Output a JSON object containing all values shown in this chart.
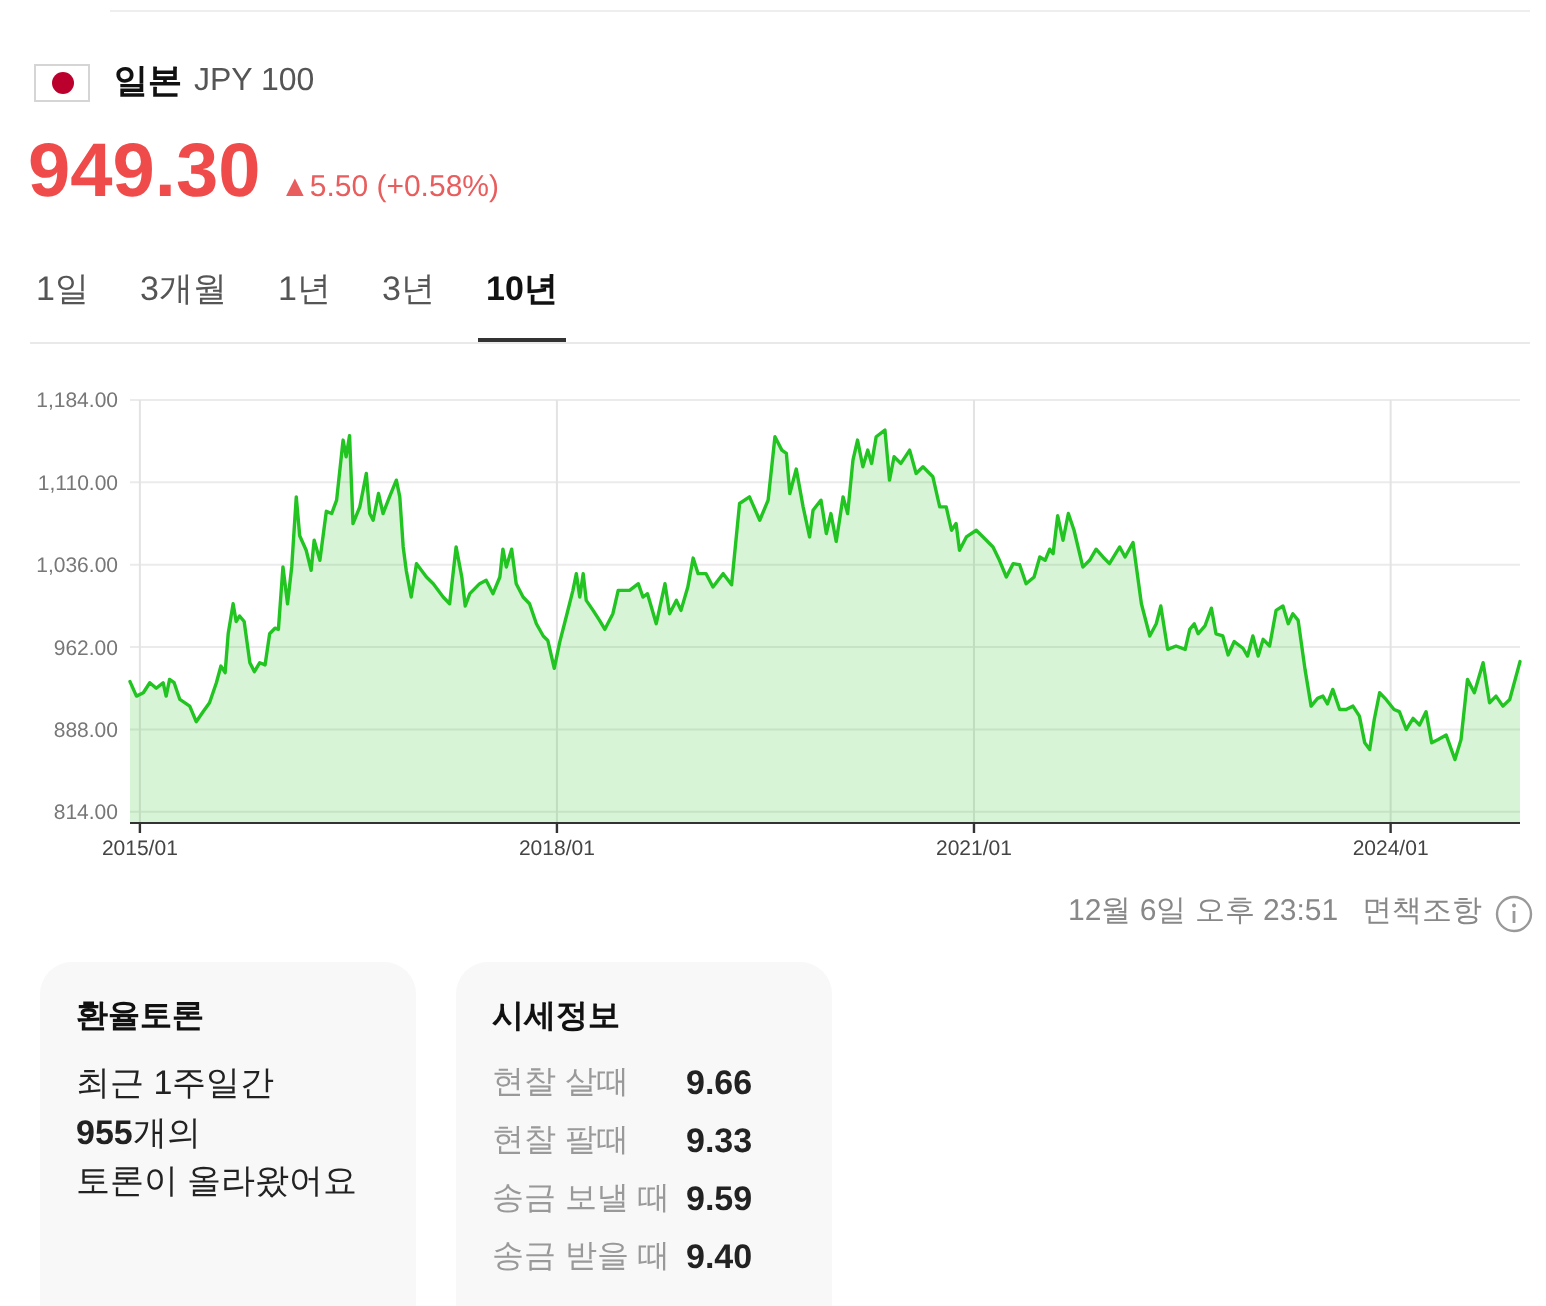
{
  "chart_data": [
    {
      "type": "area",
      "title": "일본",
      "subtitle": "JPY 100",
      "annotations": [
        "949.30",
        "▲5.50 (+0.58%)",
        "1일",
        "3개월",
        "1년",
        "3년",
        "10년",
        "12월 6일 오후 23:51",
        "면책조항"
      ],
      "x": [
        "2014-12-06",
        "2014-12-23",
        "2015-01-10",
        "2015-01-27",
        "2015-02-13",
        "2015-03-03",
        "2015-03-11",
        "2015-03-20",
        "2015-04-01",
        "2015-04-16",
        "2015-05-12",
        "2015-05-29",
        "2015-06-16",
        "2015-07-03",
        "2015-07-21",
        "2015-08-02",
        "2015-08-13",
        "2015-08-21",
        "2015-09-03",
        "2015-09-11",
        "2015-09-20",
        "2015-10-02",
        "2015-10-17",
        "2015-10-29",
        "2015-11-12",
        "2015-11-26",
        "2015-12-08",
        "2015-12-22",
        "2015-12-31",
        "2016-01-12",
        "2016-01-24",
        "2016-02-04",
        "2016-02-16",
        "2016-02-25",
        "2016-03-13",
        "2016-03-26",
        "2016-04-03",
        "2016-04-18",
        "2016-05-05",
        "2016-05-19",
        "2016-06-01",
        "2016-06-18",
        "2016-06-26",
        "2016-07-05",
        "2016-07-14",
        "2016-08-01",
        "2016-08-18",
        "2016-08-27",
        "2016-09-05",
        "2016-09-19",
        "2016-10-01",
        "2016-10-18",
        "2016-11-05",
        "2016-11-14",
        "2016-11-23",
        "2016-12-01",
        "2016-12-14",
        "2016-12-28",
        "2017-01-23",
        "2017-02-10",
        "2017-03-08",
        "2017-03-25",
        "2017-04-11",
        "2017-04-26",
        "2017-05-05",
        "2017-05-17",
        "2017-06-12",
        "2017-06-29",
        "2017-07-17",
        "2017-08-04",
        "2017-08-12",
        "2017-08-21",
        "2017-09-04",
        "2017-09-16",
        "2017-10-04",
        "2017-10-21",
        "2017-11-08",
        "2017-11-26",
        "2017-12-08",
        "2017-12-25",
        "2018-01-08",
        "2018-01-26",
        "2018-02-12",
        "2018-02-21",
        "2018-03-02",
        "2018-03-11",
        "2018-03-19",
        "2018-04-06",
        "2018-04-23",
        "2018-05-07",
        "2018-05-28",
        "2018-06-11",
        "2018-07-11",
        "2018-08-03",
        "2018-08-15",
        "2018-08-27",
        "2018-09-19",
        "2018-10-12",
        "2018-10-24",
        "2018-11-11",
        "2018-11-23",
        "2018-12-11",
        "2018-12-25",
        "2019-01-07",
        "2019-01-28",
        "2019-02-15",
        "2019-03-14",
        "2019-04-05",
        "2019-04-26",
        "2019-05-22",
        "2019-06-18",
        "2019-07-10",
        "2019-07-28",
        "2019-08-15",
        "2019-08-27",
        "2019-09-05",
        "2019-09-22",
        "2019-10-10",
        "2019-10-27",
        "2019-11-05",
        "2019-11-26",
        "2019-12-10",
        "2019-12-22",
        "2020-01-05",
        "2020-01-23",
        "2020-02-04",
        "2020-02-18",
        "2020-03-01",
        "2020-03-15",
        "2020-03-28",
        "2020-04-07",
        "2020-04-19",
        "2020-05-12",
        "2020-05-24",
        "2020-06-05",
        "2020-06-23",
        "2020-07-16",
        "2020-08-02",
        "2020-08-20",
        "2020-09-15",
        "2020-10-03",
        "2020-10-20",
        "2020-11-03",
        "2020-11-15",
        "2020-11-24",
        "2020-12-12",
        "2021-01-07",
        "2021-01-25",
        "2021-02-20",
        "2021-03-09",
        "2021-03-27",
        "2021-04-14",
        "2021-05-01",
        "2021-05-18",
        "2021-06-08",
        "2021-06-23",
        "2021-07-07",
        "2021-07-19",
        "2021-07-28",
        "2021-08-09",
        "2021-08-23",
        "2021-09-06",
        "2021-09-21",
        "2021-10-14",
        "2021-11-01",
        "2021-11-18",
        "2021-12-06",
        "2021-12-23",
        "2022-01-19",
        "2022-02-02",
        "2022-02-23",
        "2022-03-17",
        "2022-04-08",
        "2022-04-25",
        "2022-05-07",
        "2022-05-25",
        "2022-06-16",
        "2022-07-10",
        "2022-07-22",
        "2022-08-03",
        "2022-08-13",
        "2022-08-31",
        "2022-09-17",
        "2022-09-29",
        "2022-10-17",
        "2022-10-31",
        "2022-11-16",
        "2022-12-09",
        "2022-12-21",
        "2023-01-04",
        "2023-01-18",
        "2023-01-31",
        "2023-02-17",
        "2023-03-06",
        "2023-03-24",
        "2023-04-07",
        "2023-04-19",
        "2023-05-03",
        "2023-05-21",
        "2023-06-06",
        "2023-06-23",
        "2023-07-07",
        "2023-07-19",
        "2023-08-02",
        "2023-08-20",
        "2023-09-06",
        "2023-09-24",
        "2023-10-11",
        "2023-10-25",
        "2023-11-07",
        "2023-11-19",
        "2023-12-03",
        "2023-12-20",
        "2024-01-10",
        "2024-01-24",
        "2024-02-11",
        "2024-02-29",
        "2024-03-17",
        "2024-04-03",
        "2024-04-18",
        "2024-05-05",
        "2024-05-26",
        "2024-06-18",
        "2024-07-04",
        "2024-07-21",
        "2024-08-08",
        "2024-08-31",
        "2024-09-17",
        "2024-10-04",
        "2024-10-22",
        "2024-11-09",
        "2024-12-06"
      ],
      "series": [
        {
          "color": "#22c422",
          "values": [
            931,
            918,
            921,
            930,
            925,
            930,
            918,
            933,
            930,
            915,
            909,
            895,
            904,
            912,
            930,
            945,
            939,
            974,
            1001,
            985,
            990,
            985,
            948,
            940,
            948,
            946,
            974,
            979,
            978,
            1034,
            1001,
            1034,
            1097,
            1062,
            1049,
            1031,
            1058,
            1040,
            1084,
            1082,
            1094,
            1148,
            1133,
            1152,
            1073,
            1088,
            1118,
            1082,
            1076,
            1100,
            1082,
            1097,
            1112,
            1097,
            1052,
            1031,
            1007,
            1037,
            1025,
            1019,
            1007,
            1001,
            1052,
            1025,
            999,
            1010,
            1019,
            1022,
            1010,
            1025,
            1050,
            1034,
            1050,
            1019,
            1007,
            1001,
            983,
            972,
            968,
            943,
            966,
            990,
            1013,
            1028,
            1007,
            1028,
            1004,
            995,
            986,
            978,
            992,
            1013,
            1013,
            1019,
            1007,
            1010,
            983,
            1019,
            992,
            1004,
            995,
            1016,
            1042,
            1028,
            1028,
            1016,
            1028,
            1018,
            1091,
            1097,
            1076,
            1094,
            1151,
            1139,
            1136,
            1100,
            1122,
            1088,
            1061,
            1085,
            1094,
            1064,
            1082,
            1057,
            1097,
            1082,
            1130,
            1148,
            1124,
            1139,
            1127,
            1151,
            1157,
            1112,
            1133,
            1127,
            1139,
            1118,
            1124,
            1115,
            1088,
            1088,
            1067,
            1073,
            1049,
            1061,
            1067,
            1061,
            1052,
            1040,
            1025,
            1037,
            1036,
            1019,
            1025,
            1043,
            1040,
            1050,
            1046,
            1080,
            1058,
            1082,
            1067,
            1034,
            1040,
            1050,
            1043,
            1037,
            1052,
            1043,
            1056,
            1001,
            972,
            983,
            999,
            960,
            963,
            960,
            978,
            983,
            974,
            981,
            997,
            974,
            972,
            955,
            967,
            961,
            954,
            972,
            954,
            969,
            963,
            995,
            999,
            983,
            992,
            986,
            942,
            909,
            916,
            918,
            911,
            924,
            906,
            906,
            909,
            900,
            876,
            870,
            897,
            921,
            915,
            906,
            904,
            888,
            898,
            892,
            904,
            876,
            879,
            883,
            861,
            879,
            933,
            921,
            948,
            912,
            918,
            909,
            915,
            949
          ]
        }
      ],
      "xlim": [
        "2014-12-06",
        "2024-12-06"
      ],
      "xticks": [
        {
          "value": "2015-01",
          "label": "2015/01"
        },
        {
          "value": "2018-01",
          "label": "2018/01"
        },
        {
          "value": "2021-01",
          "label": "2021/01"
        },
        {
          "value": "2024-01",
          "label": "2024/01"
        }
      ],
      "ylim": [
        804,
        1184
      ],
      "yticks": [
        {
          "value": 814,
          "label": "814.00"
        },
        {
          "value": 888,
          "label": "888.00"
        },
        {
          "value": 962,
          "label": "962.00"
        },
        {
          "value": 1036,
          "label": "1,036.00"
        },
        {
          "value": 1110,
          "label": "1,110.00"
        },
        {
          "value": 1184,
          "label": "1,184.00"
        }
      ],
      "grid": true
    },
    {
      "type": "other",
      "title": "환율토론",
      "annotations": [
        "최근 1주일간",
        "955개의",
        "토론이 올라왔어요"
      ]
    },
    {
      "type": "other",
      "title": "시세정보",
      "categories": [
        "현찰 살때",
        "현찰 팔때",
        "송금 보낼 때",
        "송금 받을 때"
      ],
      "values": [
        9.66,
        9.33,
        9.59,
        9.4
      ],
      "value_labels": [
        "9.66",
        "9.33",
        "9.59",
        "9.40"
      ]
    }
  ]
}
